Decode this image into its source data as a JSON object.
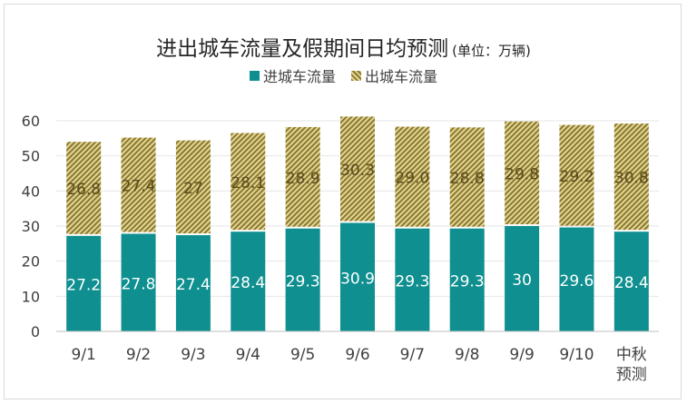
{
  "title": "进出城车流量及假期间日均预测",
  "unit": "(单位：万辆)",
  "colors": {
    "inbound": "#0f8f8f",
    "outbound_hatch_dark": "#8a7a2a",
    "outbound_hatch_light": "#e3d49a",
    "grid": "#e6e6e6",
    "axis": "#bfbfbf"
  },
  "chart_data": {
    "type": "bar",
    "stacked": true,
    "categories": [
      "9/1",
      "9/2",
      "9/3",
      "9/4",
      "9/5",
      "9/6",
      "9/7",
      "9/8",
      "9/9",
      "9/10",
      "中秋预测"
    ],
    "category_lines": [
      [
        "9/1"
      ],
      [
        "9/2"
      ],
      [
        "9/3"
      ],
      [
        "9/4"
      ],
      [
        "9/5"
      ],
      [
        "9/6"
      ],
      [
        "9/7"
      ],
      [
        "9/8"
      ],
      [
        "9/9"
      ],
      [
        "9/10"
      ],
      [
        "中秋",
        "预测"
      ]
    ],
    "series": [
      {
        "name": "进城车流量",
        "values": [
          27.2,
          27.8,
          27.4,
          28.4,
          29.3,
          30.9,
          29.3,
          29.3,
          30,
          29.6,
          28.4
        ],
        "labels": [
          "27.2",
          "27.8",
          "27.4",
          "28.4",
          "29.3",
          "30.9",
          "29.3",
          "29.3",
          "30",
          "29.6",
          "28.4"
        ]
      },
      {
        "name": "出城车流量",
        "values": [
          26.8,
          27.4,
          27,
          28.1,
          28.9,
          30.3,
          29.0,
          28.8,
          29.8,
          29.2,
          30.8
        ],
        "labels": [
          "26.8",
          "27.4",
          "27",
          "28.1",
          "28.9",
          "30.3",
          "29.0",
          "28.8",
          "29.8",
          "29.2",
          "30.8"
        ]
      }
    ],
    "ylim": [
      0,
      60
    ],
    "yticks": [
      "0",
      "10",
      "20",
      "30",
      "40",
      "50",
      "60"
    ],
    "grid": true,
    "legend_position": "top"
  }
}
